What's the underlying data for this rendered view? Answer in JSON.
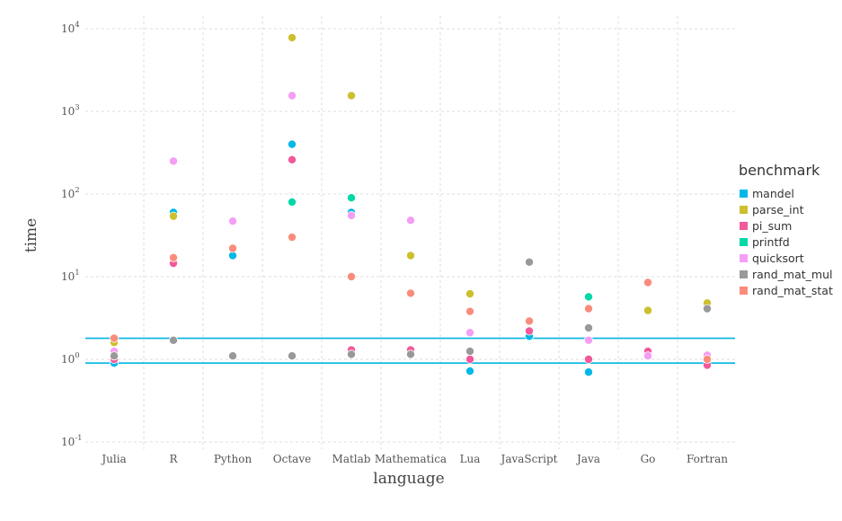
{
  "chart_data": {
    "type": "scatter",
    "title": "",
    "xlabel": "language",
    "ylabel": "time",
    "yscale": "log",
    "ylim": [
      0.1,
      10000
    ],
    "y_tick_labels": [
      {
        "value": 0.1,
        "base": "10",
        "exp": "-1"
      },
      {
        "value": 1,
        "base": "10",
        "exp": "0"
      },
      {
        "value": 10,
        "base": "10",
        "exp": "1"
      },
      {
        "value": 100,
        "base": "10",
        "exp": "2"
      },
      {
        "value": 1000,
        "base": "10",
        "exp": "3"
      },
      {
        "value": 10000,
        "base": "10",
        "exp": "4"
      }
    ],
    "categories": [
      "Julia",
      "R",
      "Python",
      "Octave",
      "Matlab",
      "Mathematica",
      "Lua",
      "JavaScript",
      "Java",
      "Go",
      "Fortran"
    ],
    "grid": true,
    "legend_position": "right",
    "legend_title": "benchmark",
    "reference_lines": [
      1.8,
      0.9
    ],
    "reference_line_color": "#00b5e2",
    "series": [
      {
        "name": "mandel",
        "color": "#00b8e7",
        "values": [
          0.9,
          60,
          18,
          400,
          60,
          null,
          0.72,
          1.9,
          0.7,
          null,
          null
        ]
      },
      {
        "name": "parse_int",
        "color": "#cdbf2d",
        "values": [
          1.6,
          54,
          null,
          7800,
          1550,
          18,
          6.2,
          null,
          null,
          3.9,
          4.8
        ]
      },
      {
        "name": "pi_sum",
        "color": "#f2589a",
        "values": [
          1.0,
          14.5,
          null,
          260,
          1.3,
          1.3,
          1.0,
          2.2,
          1.0,
          1.25,
          0.85
        ]
      },
      {
        "name": "printfd",
        "color": "#00d8a8",
        "values": [
          null,
          null,
          null,
          80,
          90,
          null,
          null,
          null,
          5.7,
          null,
          null
        ]
      },
      {
        "name": "quicksort",
        "color": "#f49ef5",
        "values": [
          1.25,
          250,
          47,
          1550,
          55,
          48,
          2.1,
          null,
          1.7,
          1.1,
          1.12
        ]
      },
      {
        "name": "rand_mat_mul",
        "color": "#999999",
        "values": [
          1.1,
          1.7,
          1.1,
          1.1,
          1.15,
          1.15,
          1.25,
          15,
          2.4,
          null,
          4.1
        ]
      },
      {
        "name": "rand_mat_stat",
        "color": "#fa8c7c",
        "values": [
          1.8,
          17,
          22,
          30,
          10,
          6.3,
          3.8,
          2.9,
          4.1,
          8.5,
          1.0
        ]
      }
    ]
  }
}
